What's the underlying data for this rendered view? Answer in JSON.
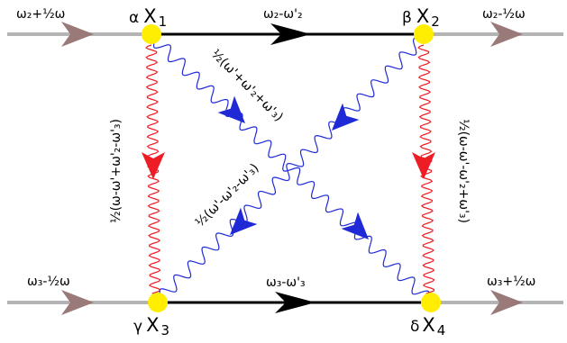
{
  "colors": {
    "grey_line": "#b4b4b4",
    "incoming_arrow": "#9a7a78",
    "black_line": "#000000",
    "red_wave": "#ee1c24",
    "blue_wave": "#1f2ad6",
    "vertex": "#ffee00"
  },
  "external": {
    "top_left": "ω₂+½ω",
    "top_right": "ω₂-½ω",
    "bottom_left": "ω₃-½ω",
    "bottom_right": "ω₃+½ω"
  },
  "propagators": {
    "top": "ω₂-ω'₂",
    "bottom": "ω₃-ω'₃"
  },
  "vertices": {
    "v1": {
      "greek": "α",
      "x": "X",
      "sub": "1"
    },
    "v2": {
      "greek": "β",
      "x": "X",
      "sub": "2"
    },
    "v3": {
      "greek": "γ",
      "x": "X",
      "sub": "3"
    },
    "v4": {
      "greek": "δ",
      "x": "X",
      "sub": "4"
    }
  },
  "waves": {
    "left": "½(ω-ω'+ω'₂-ω'₃)",
    "right": "½(ω-ω'-ω'₂+ω'₃)",
    "diag_upper": "½(ω'+ω'₂+ω'₃)",
    "diag_lower": "½(ω'-ω'₂-ω'₃)"
  },
  "icons": {
    "arrow": "triangle-arrow-icon",
    "vertex": "vertex-dot-icon",
    "wave": "wavy-line-icon"
  }
}
